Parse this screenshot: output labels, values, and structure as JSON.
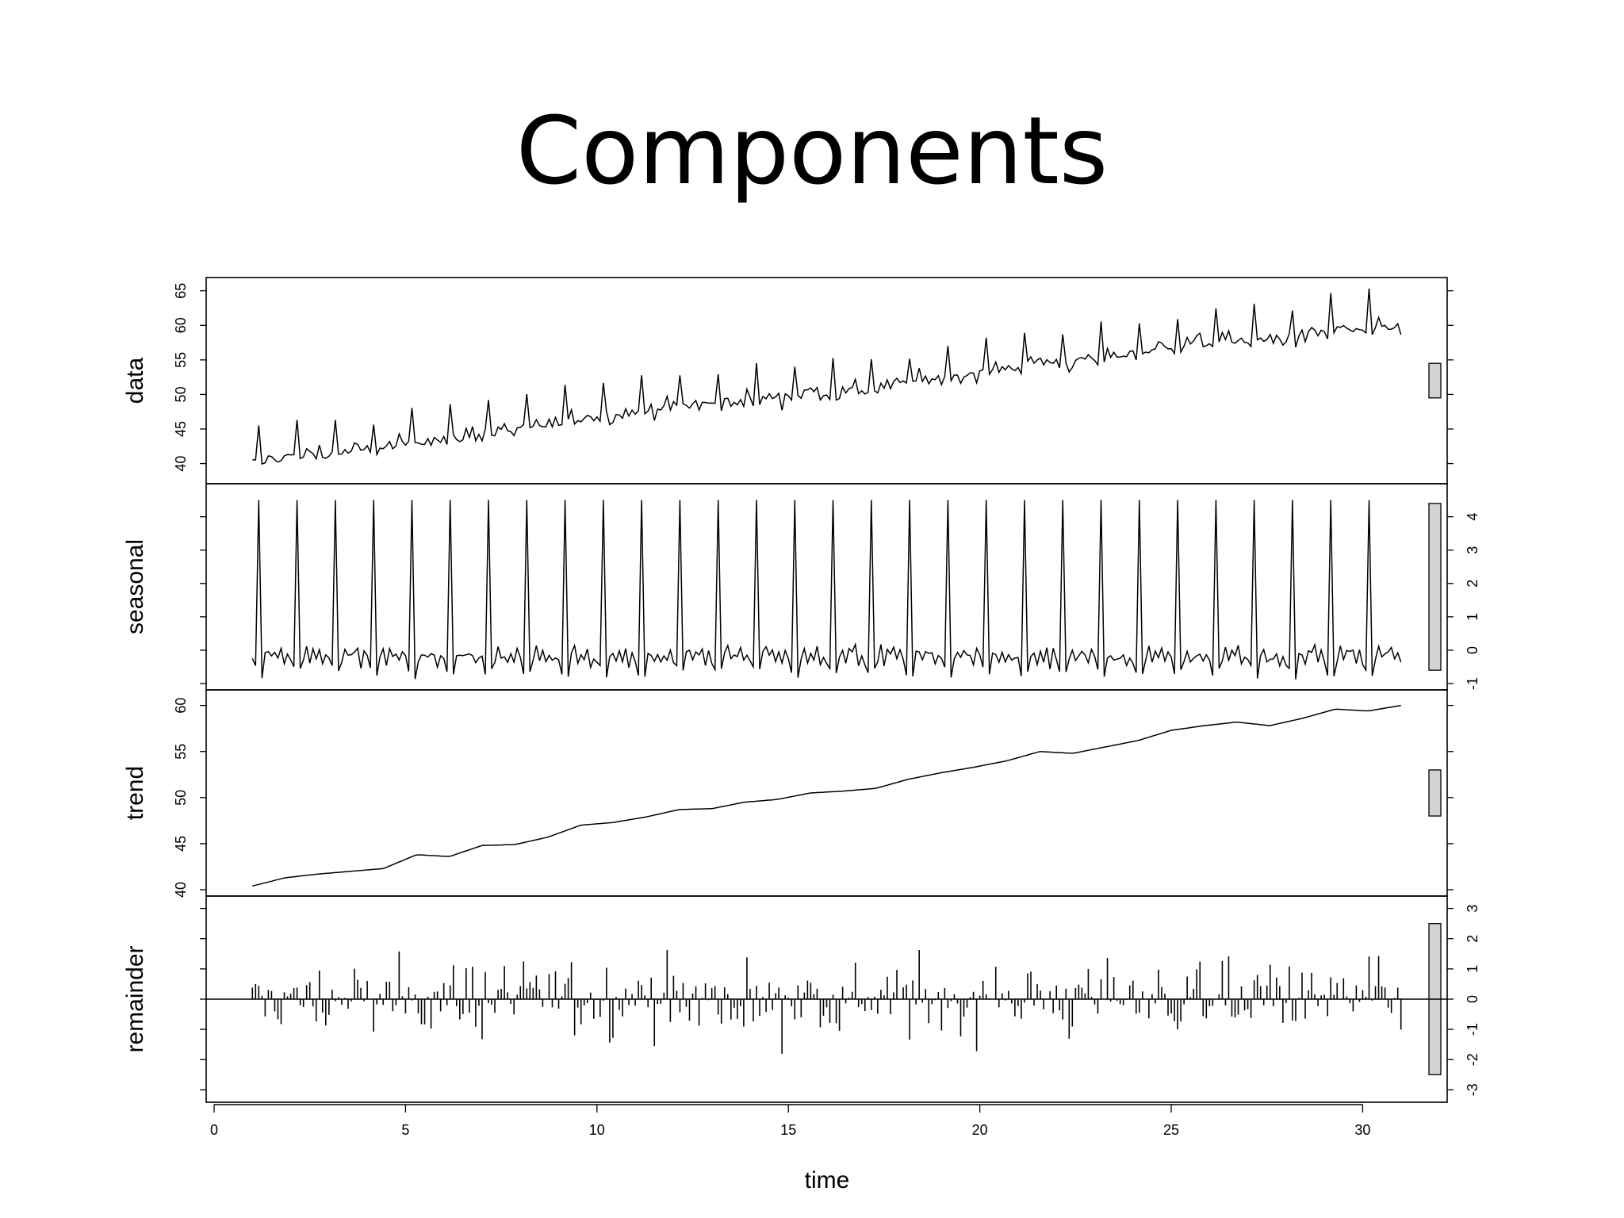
{
  "slide": {
    "title": "Components"
  },
  "chart_data": {
    "type": "line",
    "title": "",
    "xlabel": "time",
    "xlim": [
      0,
      32
    ],
    "x_ticks": [
      0,
      5,
      10,
      15,
      20,
      25,
      30
    ],
    "x_tick_labels": [
      "0",
      "5",
      "10",
      "15",
      "20",
      "25",
      "30"
    ],
    "x_start": 1,
    "x_end": 31,
    "frequency": 12,
    "grid": false,
    "panels": [
      {
        "name": "data",
        "kind": "line",
        "ylim": [
          38,
          66
        ],
        "ticks": [
          40,
          45,
          50,
          55,
          60,
          65
        ],
        "tick_labels": [
          "40",
          "45",
          "50",
          "55",
          "60",
          "65"
        ],
        "tick_side": "left",
        "bar_range": 5
      },
      {
        "name": "seasonal",
        "kind": "line",
        "ylim": [
          -1,
          4.8
        ],
        "ticks": [
          -1,
          0,
          1,
          2,
          3,
          4
        ],
        "tick_labels": [
          "-1",
          "0",
          "1",
          "2",
          "3",
          "4"
        ],
        "tick_side": "right",
        "bar_range": 5
      },
      {
        "name": "trend",
        "kind": "line",
        "ylim": [
          40,
          61
        ],
        "ticks": [
          40,
          45,
          50,
          55,
          60
        ],
        "tick_labels": [
          "40",
          "45",
          "50",
          "55",
          "60"
        ],
        "tick_side": "left",
        "bar_range": 5
      },
      {
        "name": "remainder",
        "kind": "bars",
        "ylim": [
          -3.2,
          3.2
        ],
        "ticks": [
          -3,
          -2,
          -1,
          0,
          1,
          2,
          3
        ],
        "tick_labels": [
          "-3",
          "-2",
          "-1",
          "0",
          "1",
          "2",
          "3"
        ],
        "tick_side": "right",
        "bar_range": 5
      }
    ],
    "trend_values": [
      40.4,
      41.3,
      41.7,
      42.0,
      42.3,
      43.8,
      43.6,
      44.8,
      44.9,
      45.7,
      47.0,
      47.3,
      47.9,
      48.7,
      48.8,
      49.5,
      49.8,
      50.5,
      50.7,
      51.0,
      52.0,
      52.7,
      53.3,
      54.0,
      55.0,
      54.8,
      55.5,
      56.2,
      57.3,
      57.8,
      58.2,
      57.8,
      58.6,
      59.6,
      59.4,
      60.0
    ]
  }
}
